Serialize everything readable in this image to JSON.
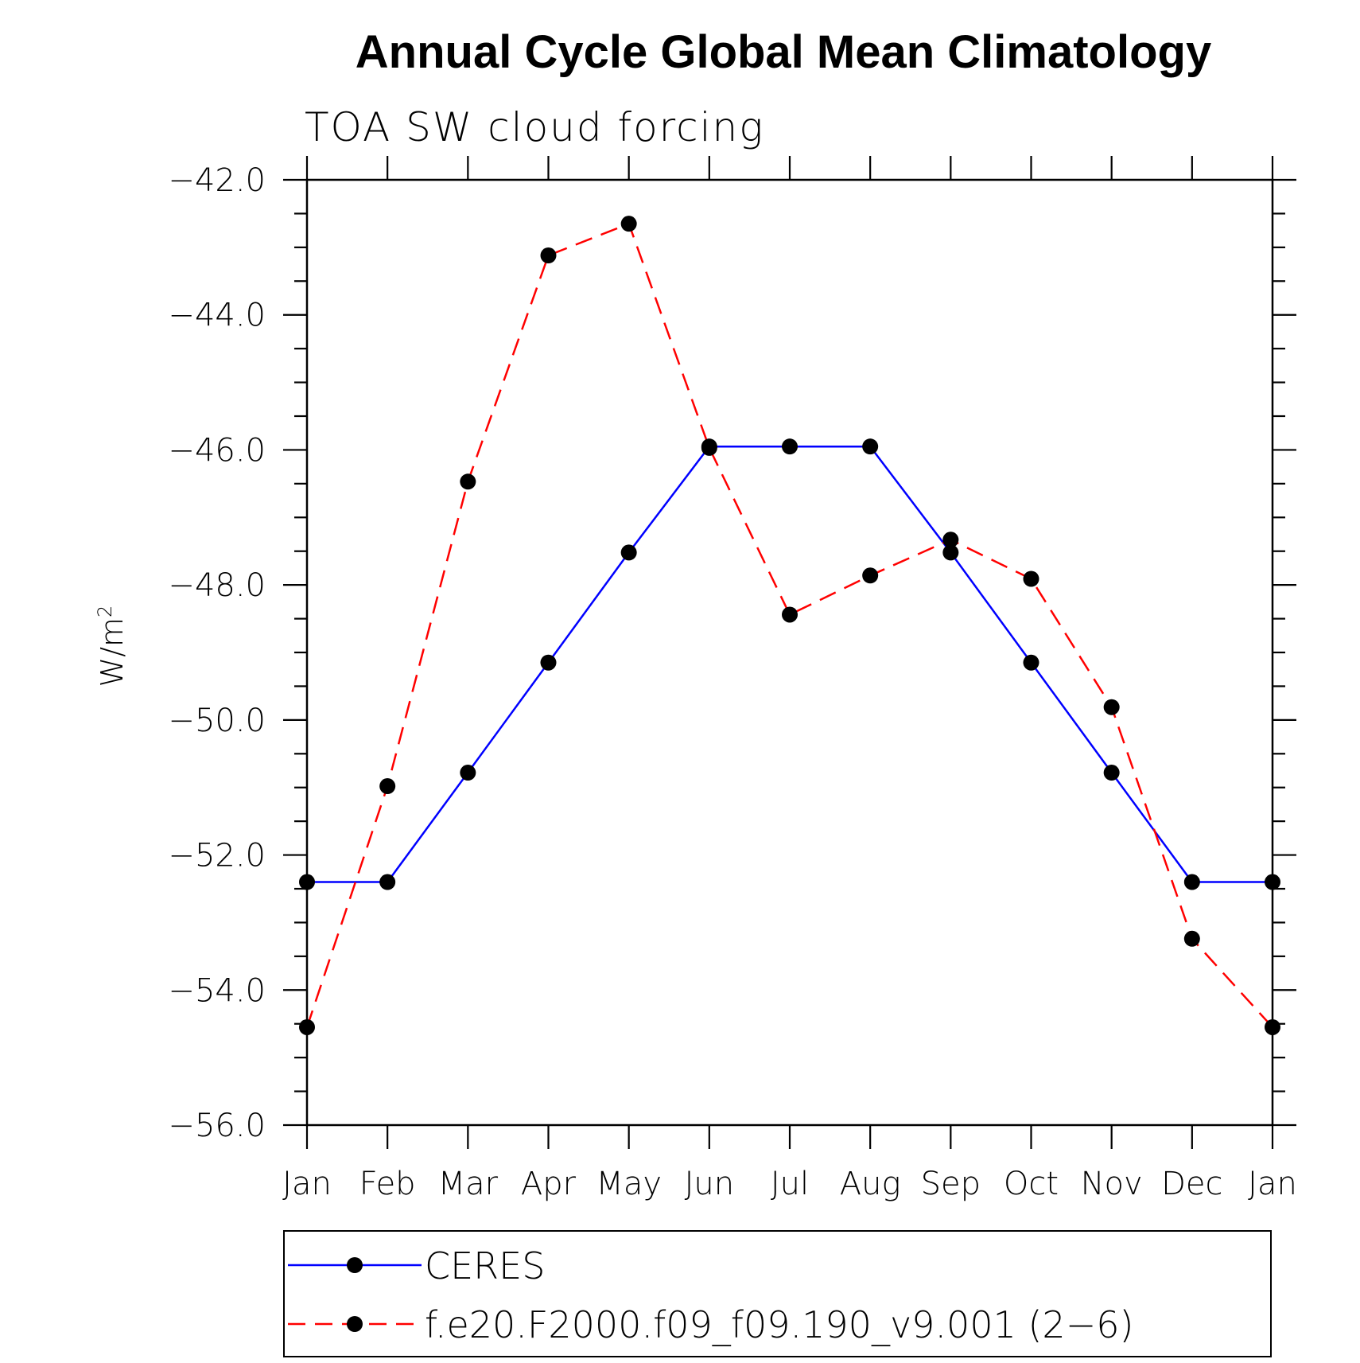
{
  "chart_data": {
    "type": "line",
    "title": "Annual Cycle Global Mean Climatology",
    "subtitle": "TOA SW cloud forcing",
    "xlabel": "",
    "ylabel": "W/m",
    "ylabel_sup": "2",
    "ylim": [
      -56.0,
      -42.0
    ],
    "yticks": [
      "−42.0",
      "−44.0",
      "−46.0",
      "−48.0",
      "−50.0",
      "−52.0",
      "−54.0",
      "−56.0"
    ],
    "ytick_values": [
      -42,
      -44,
      -46,
      -48,
      -50,
      -52,
      -54,
      -56
    ],
    "categories": [
      "Jan",
      "Feb",
      "Mar",
      "Apr",
      "May",
      "Jun",
      "Jul",
      "Aug",
      "Sep",
      "Oct",
      "Nov",
      "Dec",
      "Jan"
    ],
    "series": [
      {
        "name": "CERES",
        "color": "#0000ff",
        "dash": "solid",
        "values": [
          -52.4,
          -52.4,
          -50.78,
          -49.15,
          -47.52,
          -45.95,
          -45.95,
          -45.95,
          -47.52,
          -49.15,
          -50.78,
          -52.4,
          -52.4
        ]
      },
      {
        "name": "f.e20.F2000.f09_f09.190_v9.001 (2−6)",
        "color": "#ff0000",
        "dash": "dashed",
        "values": [
          -54.55,
          -50.98,
          -46.47,
          -43.12,
          -42.65,
          -45.97,
          -48.44,
          -47.86,
          -47.33,
          -47.91,
          -49.81,
          -53.24,
          -54.55
        ]
      }
    ],
    "marker_color": "#000000",
    "legend_position": "bottom"
  }
}
